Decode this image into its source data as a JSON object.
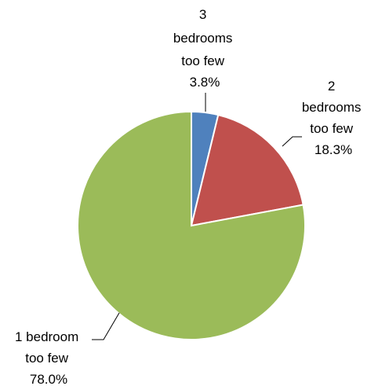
{
  "chart_data": {
    "type": "pie",
    "title": "",
    "categories": [
      "3 bedrooms too few",
      "2 bedrooms too few",
      "1 bedroom too few"
    ],
    "values": [
      3.8,
      18.3,
      78.0
    ],
    "colors": [
      "#4F81BD",
      "#C0504D",
      "#9BBB59"
    ],
    "start_angle_deg": 0,
    "direction": "clockwise",
    "legend": "none",
    "slices": [
      {
        "label_lines": [
          "3",
          "bedrooms",
          "too few"
        ],
        "percent_text": "3.8%",
        "value": 3.8,
        "color": "#4F81BD"
      },
      {
        "label_lines": [
          "2",
          "bedrooms",
          "too few"
        ],
        "percent_text": "18.3%",
        "value": 18.3,
        "color": "#C0504D"
      },
      {
        "label_lines": [
          "1 bedroom",
          "too few"
        ],
        "percent_text": "78.0%",
        "value": 78.0,
        "color": "#9BBB59"
      }
    ]
  }
}
